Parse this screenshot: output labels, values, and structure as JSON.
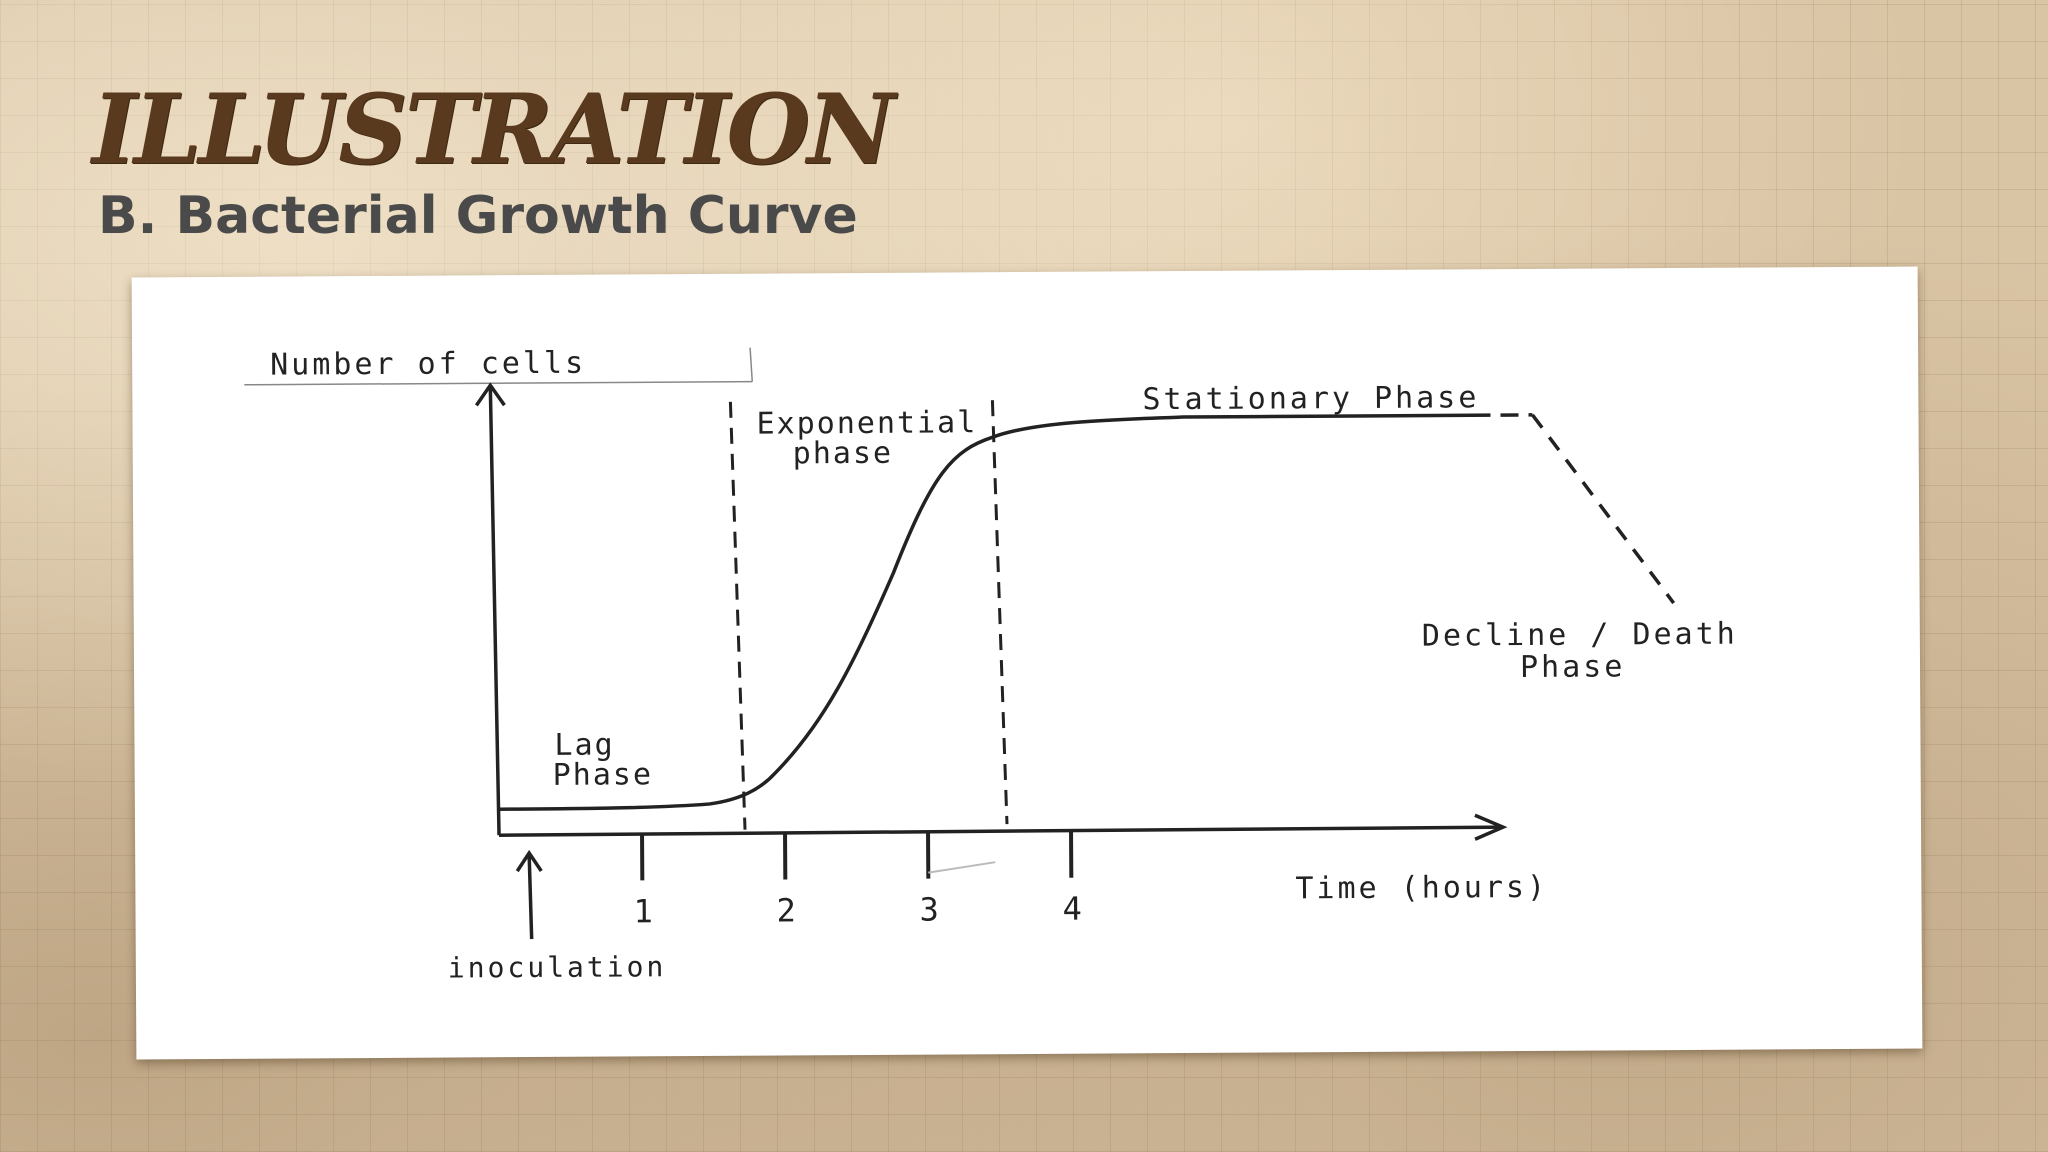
{
  "slide": {
    "title": "ILLUSTRATION",
    "subtitle": "B. Bacterial Growth Curve"
  },
  "diagram": {
    "y_axis_label": "Number of cells",
    "x_axis_label": "Time (hours)",
    "x_ticks": [
      "1",
      "2",
      "3",
      "4"
    ],
    "inoculation_label": "inoculation",
    "phases": {
      "lag": [
        "Lag",
        "Phase"
      ],
      "exponential": [
        "Exponential",
        "phase"
      ],
      "stationary": "Stationary Phase",
      "decline": [
        "Decline / Death",
        "Phase"
      ]
    },
    "colors": {
      "ink": "#222222",
      "paper": "#ffffff",
      "title": "#5a3a1e",
      "subtitle": "#4a4a4a"
    }
  }
}
